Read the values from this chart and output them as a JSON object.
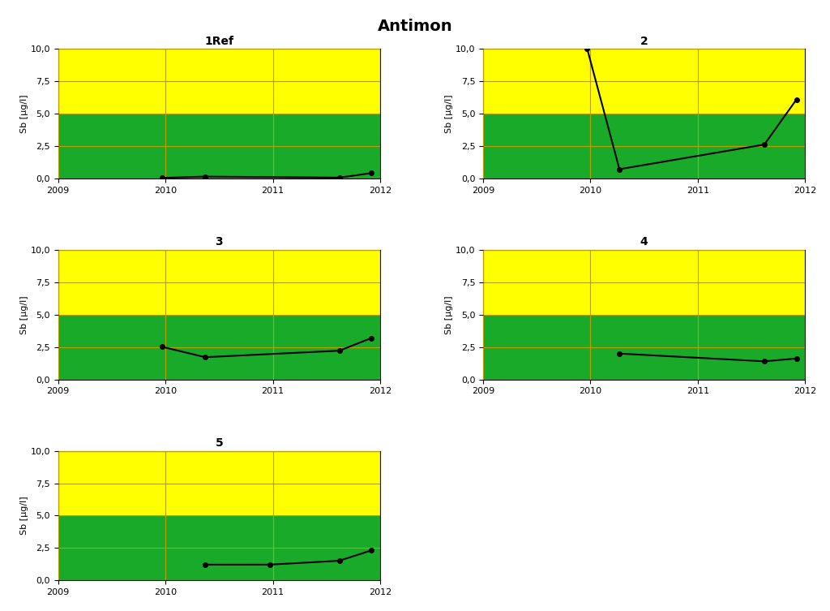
{
  "title": "Antimon",
  "green_threshold": 5.0,
  "ylim": [
    0,
    10
  ],
  "yticks": [
    0.0,
    2.5,
    5.0,
    7.5,
    10.0
  ],
  "ytick_labels": [
    "0,0",
    "2,5",
    "5,0",
    "7,5",
    "10,0"
  ],
  "xlim": [
    2009,
    2012
  ],
  "xticks": [
    2009,
    2010,
    2011,
    2012
  ],
  "ylabel": "Sb [µg/l]",
  "green_color": "#1aaa2a",
  "yellow_color": "#ffff00",
  "grid_color": "#b8a000",
  "line_color": "black",
  "subplots": [
    {
      "title": "1Ref",
      "x": [
        2009.97,
        2010.37,
        2011.62,
        2011.92
      ],
      "y": [
        0.05,
        0.15,
        0.07,
        0.42
      ]
    },
    {
      "title": "2",
      "x": [
        2009.97,
        2010.27,
        2011.62,
        2011.92
      ],
      "y": [
        10.0,
        0.72,
        2.62,
        6.1
      ]
    },
    {
      "title": "3",
      "x": [
        2009.97,
        2010.37,
        2011.62,
        2011.92
      ],
      "y": [
        2.52,
        1.72,
        2.22,
        3.2
      ]
    },
    {
      "title": "4",
      "x": [
        2010.27,
        2011.62,
        2011.92
      ],
      "y": [
        2.0,
        1.4,
        1.62
      ]
    },
    {
      "title": "5",
      "x": [
        2010.37,
        2010.97,
        2011.62,
        2011.92
      ],
      "y": [
        1.22,
        1.22,
        1.52,
        2.32
      ]
    }
  ],
  "title_fontsize": 14,
  "subplot_title_fontsize": 10,
  "axis_label_fontsize": 8,
  "tick_fontsize": 8,
  "background_color": "#ffffff"
}
